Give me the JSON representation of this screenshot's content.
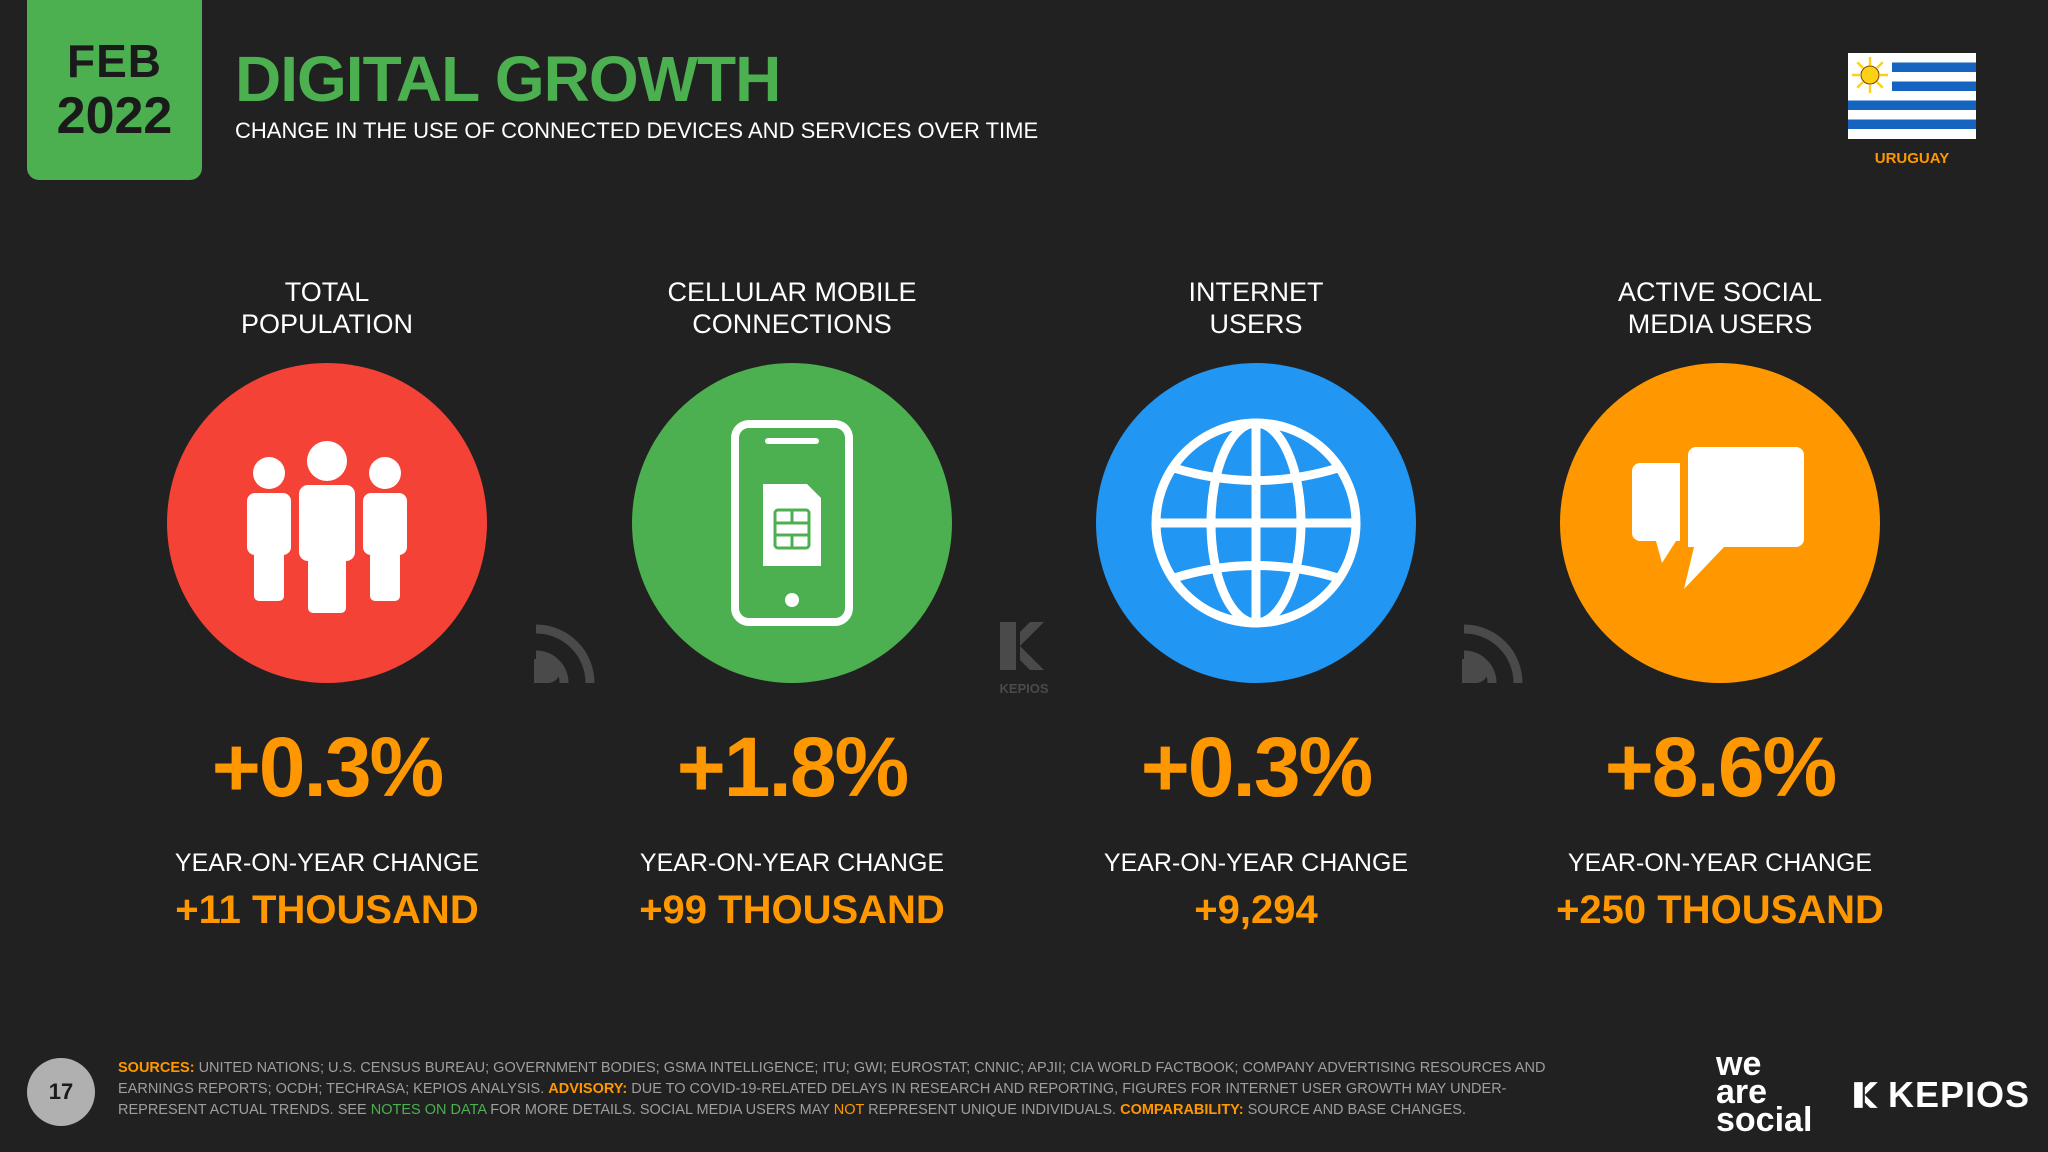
{
  "header": {
    "month": "FEB",
    "year": "2022",
    "title": "DIGITAL GROWTH",
    "subtitle": "CHANGE IN THE USE OF CONNECTED DEVICES AND SERVICES OVER TIME",
    "country": "URUGUAY"
  },
  "colors": {
    "background": "#212121",
    "accent_green": "#4caf50",
    "accent_orange": "#ff9800",
    "population": "#f44336",
    "mobile": "#4caf50",
    "internet": "#2196f3",
    "social": "#ff9800"
  },
  "metrics": [
    {
      "label_line1": "TOTAL",
      "label_line2": "POPULATION",
      "icon": "people-icon",
      "change_percent": "+0.3%",
      "change_label": "YEAR-ON-YEAR CHANGE",
      "change_absolute": "+11 THOUSAND"
    },
    {
      "label_line1": "CELLULAR MOBILE",
      "label_line2": "CONNECTIONS",
      "icon": "mobile-phone-icon",
      "change_percent": "+1.8%",
      "change_label": "YEAR-ON-YEAR CHANGE",
      "change_absolute": "+99 THOUSAND"
    },
    {
      "label_line1": "INTERNET",
      "label_line2": "USERS",
      "icon": "globe-icon",
      "change_percent": "+0.3%",
      "change_label": "YEAR-ON-YEAR CHANGE",
      "change_absolute": "+9,294"
    },
    {
      "label_line1": "ACTIVE SOCIAL",
      "label_line2": "MEDIA USERS",
      "icon": "speech-bubbles-icon",
      "change_percent": "+8.6%",
      "change_label": "YEAR-ON-YEAR CHANGE",
      "change_absolute": "+250 THOUSAND"
    }
  ],
  "watermarks": {
    "kepios_small": "KEPIOS"
  },
  "footer": {
    "page_number": "17",
    "sources_label": "SOURCES:",
    "sources_text": " UNITED NATIONS; U.S. CENSUS BUREAU; GOVERNMENT BODIES; GSMA INTELLIGENCE; ITU; GWI; EUROSTAT; CNNIC; APJII; CIA WORLD FACTBOOK; COMPANY ADVERTISING RESOURCES AND EARNINGS REPORTS; OCDH; TECHRASA; KEPIOS ANALYSIS. ",
    "advisory_label": "ADVISORY:",
    "advisory_text": " DUE TO COVID-19-RELATED DELAYS IN RESEARCH AND REPORTING, FIGURES FOR INTERNET USER GROWTH MAY UNDER-REPRESENT ACTUAL TRENDS. SEE ",
    "notes_link": "NOTES ON DATA",
    "notes_after": " FOR MORE DETAILS. SOCIAL MEDIA USERS MAY ",
    "not_word": "NOT",
    "not_after": " REPRESENT UNIQUE INDIVIDUALS. ",
    "comparability_label": "COMPARABILITY:",
    "comparability_text": " SOURCE AND BASE CHANGES.",
    "brand_was_1": "we",
    "brand_was_2": "are",
    "brand_was_3": "social",
    "brand_kepios": "KEPIOS"
  }
}
